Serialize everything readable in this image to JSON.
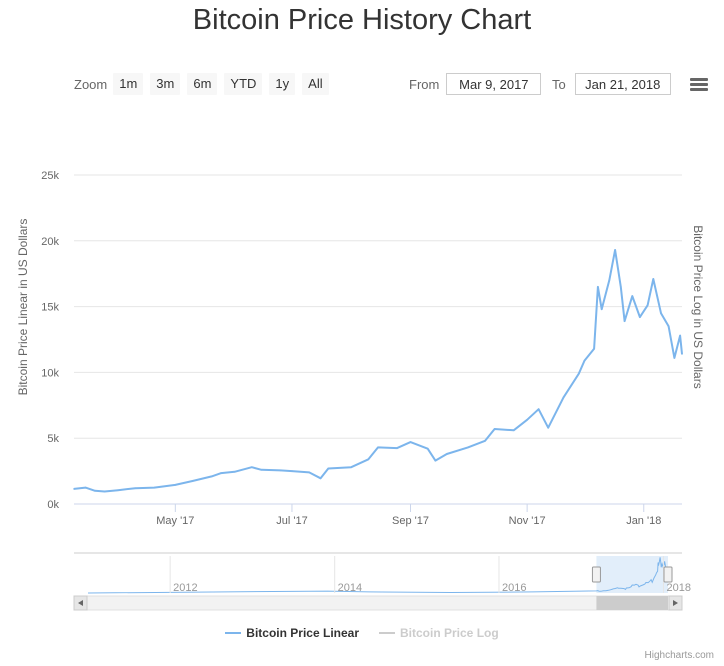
{
  "title": "Bitcoin Price History Chart",
  "range_selector": {
    "zoom_label": "Zoom",
    "buttons": [
      "1m",
      "3m",
      "6m",
      "YTD",
      "1y",
      "All"
    ],
    "from_label": "From",
    "from_value": "Mar 9, 2017",
    "to_label": "To",
    "to_value": "Jan 21, 2018"
  },
  "menu_icon": "hamburger-menu-icon",
  "legend": [
    {
      "name": "Bitcoin Price Linear",
      "color": "#7cb5ec",
      "active": true
    },
    {
      "name": "Bitcoin Price Log",
      "color": "#cccccc",
      "active": false
    }
  ],
  "credits": "Highcharts.com",
  "colors": {
    "series": "#7cb5ec",
    "grid": "#e6e6e6",
    "navigator_mask": "#cfe2f7"
  },
  "chart_data": {
    "type": "line",
    "title": "Bitcoin Price History Chart",
    "ylabel": "Bitcoin Price Linear in US Dollars",
    "ylabel_right": "Bitcoin Price Log in US Dollars",
    "ylim": [
      0,
      25000
    ],
    "y_ticks": [
      0,
      5000,
      10000,
      15000,
      20000,
      25000
    ],
    "y_tick_labels": [
      "0k",
      "5k",
      "10k",
      "15k",
      "20k",
      "25k"
    ],
    "xlim": [
      "2017-03-09",
      "2018-01-21"
    ],
    "x_ticks": [
      "2017-05-01",
      "2017-07-01",
      "2017-09-01",
      "2017-11-01",
      "2018-01-01"
    ],
    "x_tick_labels": [
      "May '17",
      "Jul '17",
      "Sep '17",
      "Nov '17",
      "Jan '18"
    ],
    "grid": true,
    "series": [
      {
        "name": "Bitcoin Price Linear",
        "x": [
          "2017-03-09",
          "2017-03-15",
          "2017-03-20",
          "2017-03-25",
          "2017-04-01",
          "2017-04-10",
          "2017-04-20",
          "2017-05-01",
          "2017-05-10",
          "2017-05-20",
          "2017-05-25",
          "2017-06-01",
          "2017-06-10",
          "2017-06-15",
          "2017-06-25",
          "2017-07-01",
          "2017-07-10",
          "2017-07-16",
          "2017-07-20",
          "2017-08-01",
          "2017-08-10",
          "2017-08-15",
          "2017-08-25",
          "2017-09-01",
          "2017-09-10",
          "2017-09-14",
          "2017-09-20",
          "2017-10-01",
          "2017-10-10",
          "2017-10-15",
          "2017-10-25",
          "2017-11-01",
          "2017-11-07",
          "2017-11-12",
          "2017-11-20",
          "2017-11-28",
          "2017-12-01",
          "2017-12-06",
          "2017-12-08",
          "2017-12-10",
          "2017-12-14",
          "2017-12-17",
          "2017-12-20",
          "2017-12-22",
          "2017-12-26",
          "2017-12-30",
          "2018-01-03",
          "2018-01-06",
          "2018-01-10",
          "2018-01-14",
          "2018-01-17",
          "2018-01-20",
          "2018-01-21"
        ],
        "values": [
          1150,
          1250,
          1000,
          950,
          1050,
          1200,
          1250,
          1450,
          1750,
          2100,
          2350,
          2450,
          2800,
          2600,
          2550,
          2500,
          2400,
          1950,
          2700,
          2800,
          3400,
          4300,
          4250,
          4700,
          4200,
          3300,
          3800,
          4300,
          4800,
          5700,
          5600,
          6400,
          7200,
          5800,
          8100,
          9900,
          10900,
          11800,
          16500,
          14800,
          17000,
          19300,
          16500,
          13900,
          15800,
          14200,
          15100,
          17100,
          14500,
          13500,
          11100,
          12800,
          11400
        ]
      }
    ],
    "navigator": {
      "x_tick_labels": [
        "2012",
        "2014",
        "2016",
        "2018"
      ],
      "selected_range": [
        "2017-03-09",
        "2018-01-21"
      ]
    }
  }
}
